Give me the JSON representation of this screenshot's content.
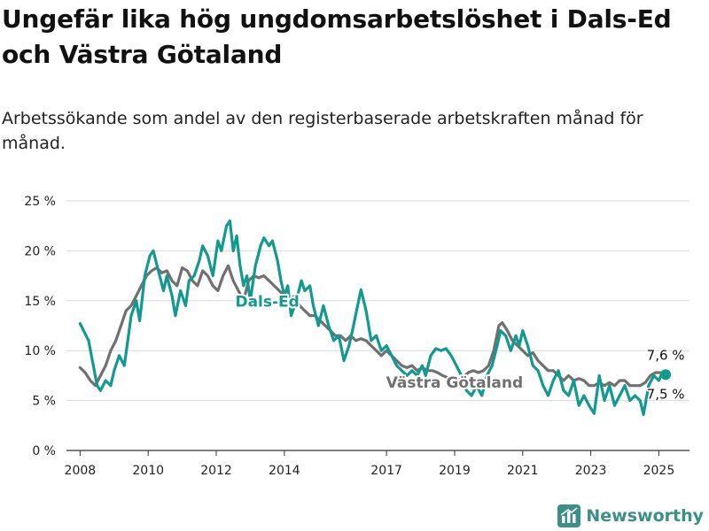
{
  "header": {
    "title": "Ungefär lika hög ungdomsarbetslöshet i Dals-Ed och Västra Götaland",
    "subtitle": "Arbetssökande som andel av den registerbaserade arbetskraften månad för månad."
  },
  "brand": {
    "name": "Newsworthy",
    "icon": "bar-chart-logo-icon",
    "color": "#3a8f86"
  },
  "colors": {
    "dals_ed": "#129a8f",
    "vastra_gotaland": "#707070",
    "grid": "#d9d9d9",
    "axis": "#333333"
  },
  "chart_data": {
    "type": "line",
    "title": "Ungefär lika hög ungdomsarbetslöshet i Dals-Ed och Västra Götaland",
    "subtitle": "Arbetssökande som andel av den registerbaserade arbetskraften månad för månad.",
    "xlabel": "",
    "ylabel": "",
    "x_ticks": [
      "2008",
      "2010",
      "2012",
      "2014",
      "2017",
      "2019",
      "2021",
      "2023",
      "2025"
    ],
    "x_range": [
      2007.6,
      2025.9
    ],
    "y_ticks": [
      "0 %",
      "5 %",
      "10 %",
      "15 %",
      "20 %",
      "25 %"
    ],
    "ylim": [
      0,
      25
    ],
    "grid": "horizontal",
    "series": [
      {
        "name": "Dals-Ed",
        "color": "#129a8f",
        "end_label": "7,6 %",
        "points": [
          [
            2008.0,
            12.7
          ],
          [
            2008.25,
            11.0
          ],
          [
            2008.5,
            6.5
          ],
          [
            2008.6,
            6.0
          ],
          [
            2008.75,
            7.0
          ],
          [
            2008.9,
            6.5
          ],
          [
            2009.0,
            8.0
          ],
          [
            2009.15,
            9.5
          ],
          [
            2009.3,
            8.5
          ],
          [
            2009.5,
            13.5
          ],
          [
            2009.65,
            15.0
          ],
          [
            2009.75,
            13.0
          ],
          [
            2009.9,
            17.5
          ],
          [
            2010.05,
            19.5
          ],
          [
            2010.15,
            20.0
          ],
          [
            2010.3,
            18.0
          ],
          [
            2010.45,
            16.0
          ],
          [
            2010.55,
            17.5
          ],
          [
            2010.7,
            15.5
          ],
          [
            2010.8,
            13.5
          ],
          [
            2010.95,
            16.0
          ],
          [
            2011.1,
            14.5
          ],
          [
            2011.2,
            17.0
          ],
          [
            2011.35,
            17.5
          ],
          [
            2011.5,
            19.0
          ],
          [
            2011.6,
            20.5
          ],
          [
            2011.75,
            19.5
          ],
          [
            2011.9,
            17.5
          ],
          [
            2012.05,
            21.0
          ],
          [
            2012.15,
            20.0
          ],
          [
            2012.3,
            22.5
          ],
          [
            2012.4,
            23.0
          ],
          [
            2012.5,
            20.0
          ],
          [
            2012.6,
            21.5
          ],
          [
            2012.7,
            18.5
          ],
          [
            2012.8,
            16.5
          ],
          [
            2012.9,
            17.5
          ],
          [
            2013.0,
            15.0
          ],
          [
            2013.15,
            18.5
          ],
          [
            2013.3,
            20.5
          ],
          [
            2013.4,
            21.3
          ],
          [
            2013.55,
            20.5
          ],
          [
            2013.65,
            21.0
          ],
          [
            2013.8,
            19.0
          ],
          [
            2013.9,
            17.0
          ],
          [
            2014.0,
            15.5
          ],
          [
            2014.1,
            16.5
          ],
          [
            2014.2,
            13.5
          ],
          [
            2014.35,
            15.0
          ],
          [
            2014.5,
            17.0
          ],
          [
            2014.6,
            16.0
          ],
          [
            2014.75,
            16.5
          ],
          [
            2014.85,
            14.5
          ],
          [
            2015.0,
            12.5
          ],
          [
            2015.15,
            14.5
          ],
          [
            2015.3,
            12.5
          ],
          [
            2015.45,
            11.0
          ],
          [
            2015.6,
            11.5
          ],
          [
            2015.75,
            9.0
          ],
          [
            2015.9,
            10.5
          ],
          [
            2016.0,
            12.0
          ],
          [
            2016.15,
            14.5
          ],
          [
            2016.25,
            16.1
          ],
          [
            2016.4,
            14.0
          ],
          [
            2016.55,
            11.0
          ],
          [
            2016.7,
            11.5
          ],
          [
            2016.85,
            10.0
          ],
          [
            2017.0,
            10.5
          ],
          [
            2017.15,
            9.5
          ],
          [
            2017.3,
            8.5
          ],
          [
            2017.45,
            8.0
          ],
          [
            2017.6,
            7.5
          ],
          [
            2017.75,
            8.0
          ],
          [
            2017.9,
            7.5
          ],
          [
            2018.05,
            8.5
          ],
          [
            2018.15,
            7.5
          ],
          [
            2018.3,
            9.5
          ],
          [
            2018.45,
            10.2
          ],
          [
            2018.6,
            10.0
          ],
          [
            2018.75,
            10.2
          ],
          [
            2018.9,
            9.5
          ],
          [
            2019.05,
            8.5
          ],
          [
            2019.2,
            7.5
          ],
          [
            2019.35,
            6.0
          ],
          [
            2019.5,
            5.5
          ],
          [
            2019.65,
            6.5
          ],
          [
            2019.8,
            5.5
          ],
          [
            2019.95,
            7.5
          ],
          [
            2020.1,
            8.5
          ],
          [
            2020.25,
            10.5
          ],
          [
            2020.35,
            12.0
          ],
          [
            2020.5,
            11.5
          ],
          [
            2020.65,
            10.0
          ],
          [
            2020.8,
            11.5
          ],
          [
            2020.9,
            10.5
          ],
          [
            2021.0,
            12.0
          ],
          [
            2021.15,
            10.5
          ],
          [
            2021.3,
            8.5
          ],
          [
            2021.45,
            8.0
          ],
          [
            2021.6,
            6.5
          ],
          [
            2021.75,
            5.5
          ],
          [
            2021.9,
            7.0
          ],
          [
            2022.05,
            8.0
          ],
          [
            2022.2,
            6.0
          ],
          [
            2022.35,
            5.5
          ],
          [
            2022.5,
            7.0
          ],
          [
            2022.65,
            4.5
          ],
          [
            2022.8,
            5.5
          ],
          [
            2022.95,
            4.5
          ],
          [
            2023.1,
            3.7
          ],
          [
            2023.25,
            7.5
          ],
          [
            2023.4,
            5.0
          ],
          [
            2023.55,
            6.5
          ],
          [
            2023.7,
            4.5
          ],
          [
            2023.85,
            5.5
          ],
          [
            2024.0,
            6.5
          ],
          [
            2024.15,
            5.0
          ],
          [
            2024.3,
            5.5
          ],
          [
            2024.45,
            5.0
          ],
          [
            2024.55,
            3.6
          ],
          [
            2024.7,
            6.5
          ],
          [
            2024.85,
            7.5
          ],
          [
            2025.0,
            7.0
          ],
          [
            2025.1,
            7.8
          ],
          [
            2025.2,
            7.6
          ]
        ]
      },
      {
        "name": "Västra Götaland",
        "color": "#707070",
        "end_label": "7,5 %",
        "points": [
          [
            2008.0,
            8.3
          ],
          [
            2008.15,
            7.8
          ],
          [
            2008.3,
            7.0
          ],
          [
            2008.45,
            6.5
          ],
          [
            2008.6,
            7.5
          ],
          [
            2008.75,
            8.5
          ],
          [
            2008.9,
            10.0
          ],
          [
            2009.05,
            11.0
          ],
          [
            2009.2,
            12.5
          ],
          [
            2009.35,
            14.0
          ],
          [
            2009.5,
            14.5
          ],
          [
            2009.65,
            15.5
          ],
          [
            2009.8,
            16.5
          ],
          [
            2009.95,
            17.5
          ],
          [
            2010.1,
            18.0
          ],
          [
            2010.25,
            18.3
          ],
          [
            2010.4,
            17.8
          ],
          [
            2010.55,
            18.0
          ],
          [
            2010.7,
            17.0
          ],
          [
            2010.85,
            16.5
          ],
          [
            2011.0,
            18.3
          ],
          [
            2011.15,
            18.0
          ],
          [
            2011.3,
            17.0
          ],
          [
            2011.45,
            16.5
          ],
          [
            2011.6,
            18.0
          ],
          [
            2011.75,
            17.5
          ],
          [
            2011.9,
            16.5
          ],
          [
            2012.05,
            16.0
          ],
          [
            2012.2,
            17.5
          ],
          [
            2012.35,
            18.5
          ],
          [
            2012.5,
            17.0
          ],
          [
            2012.65,
            16.0
          ],
          [
            2012.8,
            15.0
          ],
          [
            2012.95,
            17.0
          ],
          [
            2013.1,
            17.5
          ],
          [
            2013.25,
            17.3
          ],
          [
            2013.4,
            17.5
          ],
          [
            2013.55,
            17.0
          ],
          [
            2013.7,
            16.5
          ],
          [
            2013.85,
            16.0
          ],
          [
            2014.0,
            15.5
          ],
          [
            2014.15,
            15.0
          ],
          [
            2014.3,
            15.5
          ],
          [
            2014.45,
            14.5
          ],
          [
            2014.6,
            14.0
          ],
          [
            2014.75,
            13.5
          ],
          [
            2014.9,
            13.5
          ],
          [
            2015.05,
            13.0
          ],
          [
            2015.2,
            12.5
          ],
          [
            2015.35,
            12.0
          ],
          [
            2015.5,
            11.5
          ],
          [
            2015.65,
            11.5
          ],
          [
            2015.8,
            11.0
          ],
          [
            2015.95,
            11.5
          ],
          [
            2016.1,
            11.0
          ],
          [
            2016.25,
            11.2
          ],
          [
            2016.4,
            11.0
          ],
          [
            2016.55,
            10.5
          ],
          [
            2016.7,
            10.0
          ],
          [
            2016.85,
            9.5
          ],
          [
            2017.0,
            10.0
          ],
          [
            2017.15,
            9.5
          ],
          [
            2017.3,
            9.0
          ],
          [
            2017.45,
            8.5
          ],
          [
            2017.6,
            8.3
          ],
          [
            2017.75,
            8.5
          ],
          [
            2017.9,
            8.0
          ],
          [
            2018.05,
            8.3
          ],
          [
            2018.2,
            8.0
          ],
          [
            2018.35,
            8.0
          ],
          [
            2018.5,
            7.8
          ],
          [
            2018.65,
            7.5
          ],
          [
            2018.8,
            7.3
          ],
          [
            2018.95,
            7.2
          ],
          [
            2019.1,
            7.0
          ],
          [
            2019.25,
            7.3
          ],
          [
            2019.4,
            7.8
          ],
          [
            2019.55,
            8.0
          ],
          [
            2019.7,
            7.8
          ],
          [
            2019.85,
            8.0
          ],
          [
            2020.0,
            8.5
          ],
          [
            2020.15,
            10.0
          ],
          [
            2020.3,
            12.5
          ],
          [
            2020.4,
            12.8
          ],
          [
            2020.55,
            12.0
          ],
          [
            2020.7,
            11.0
          ],
          [
            2020.85,
            10.5
          ],
          [
            2021.0,
            10.0
          ],
          [
            2021.15,
            9.5
          ],
          [
            2021.3,
            9.8
          ],
          [
            2021.45,
            9.0
          ],
          [
            2021.6,
            8.5
          ],
          [
            2021.75,
            8.0
          ],
          [
            2021.9,
            8.0
          ],
          [
            2022.05,
            7.5
          ],
          [
            2022.2,
            7.0
          ],
          [
            2022.35,
            7.5
          ],
          [
            2022.5,
            7.0
          ],
          [
            2022.65,
            7.2
          ],
          [
            2022.8,
            7.0
          ],
          [
            2022.95,
            6.5
          ],
          [
            2023.1,
            6.5
          ],
          [
            2023.25,
            6.8
          ],
          [
            2023.4,
            6.5
          ],
          [
            2023.55,
            6.8
          ],
          [
            2023.7,
            6.5
          ],
          [
            2023.85,
            7.0
          ],
          [
            2024.0,
            7.0
          ],
          [
            2024.15,
            6.5
          ],
          [
            2024.3,
            6.5
          ],
          [
            2024.45,
            6.5
          ],
          [
            2024.6,
            6.8
          ],
          [
            2024.75,
            7.5
          ],
          [
            2024.9,
            7.8
          ],
          [
            2025.05,
            7.8
          ],
          [
            2025.2,
            7.5
          ]
        ]
      }
    ]
  }
}
